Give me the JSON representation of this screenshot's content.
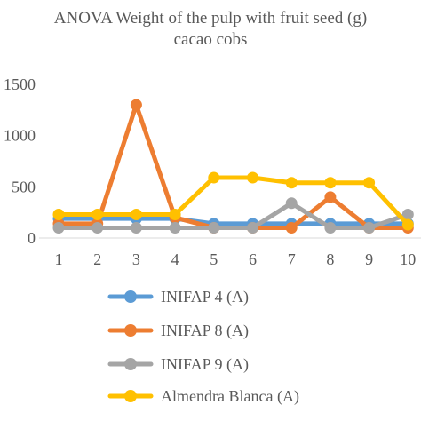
{
  "chart_data": {
    "type": "line",
    "title_line1": "ANOVA  Weight of the pulp with fruit seed (g)",
    "title_line2": "cacao cobs",
    "x": [
      1,
      2,
      3,
      4,
      5,
      6,
      7,
      8,
      9,
      10
    ],
    "x_tick_labels": [
      "1",
      "2",
      "3",
      "4",
      "5",
      "6",
      "7",
      "8",
      "9",
      "10"
    ],
    "y_tick_labels": [
      "0",
      "500",
      "1000",
      "1500"
    ],
    "y_ticks": [
      0,
      500,
      1000,
      1500
    ],
    "ylim": [
      0,
      1500
    ],
    "grid": false,
    "legend_position": "bottom",
    "series": [
      {
        "name": "INIFAP 4 (A)",
        "color": "#5B9BD5",
        "values": [
          190,
          190,
          190,
          190,
          140,
          140,
          140,
          140,
          140,
          140
        ]
      },
      {
        "name": "INIFAP 8 (A)",
        "color": "#ED7D31",
        "values": [
          140,
          140,
          1300,
          200,
          100,
          100,
          100,
          400,
          100,
          100
        ]
      },
      {
        "name": "INIFAP 9 (A)",
        "color": "#A5A5A5",
        "values": [
          100,
          100,
          100,
          100,
          100,
          100,
          340,
          100,
          100,
          230
        ]
      },
      {
        "name": "Almendra Blanca (A)",
        "color": "#FFC000",
        "values": [
          230,
          230,
          230,
          230,
          590,
          590,
          540,
          540,
          540,
          130
        ]
      }
    ]
  }
}
